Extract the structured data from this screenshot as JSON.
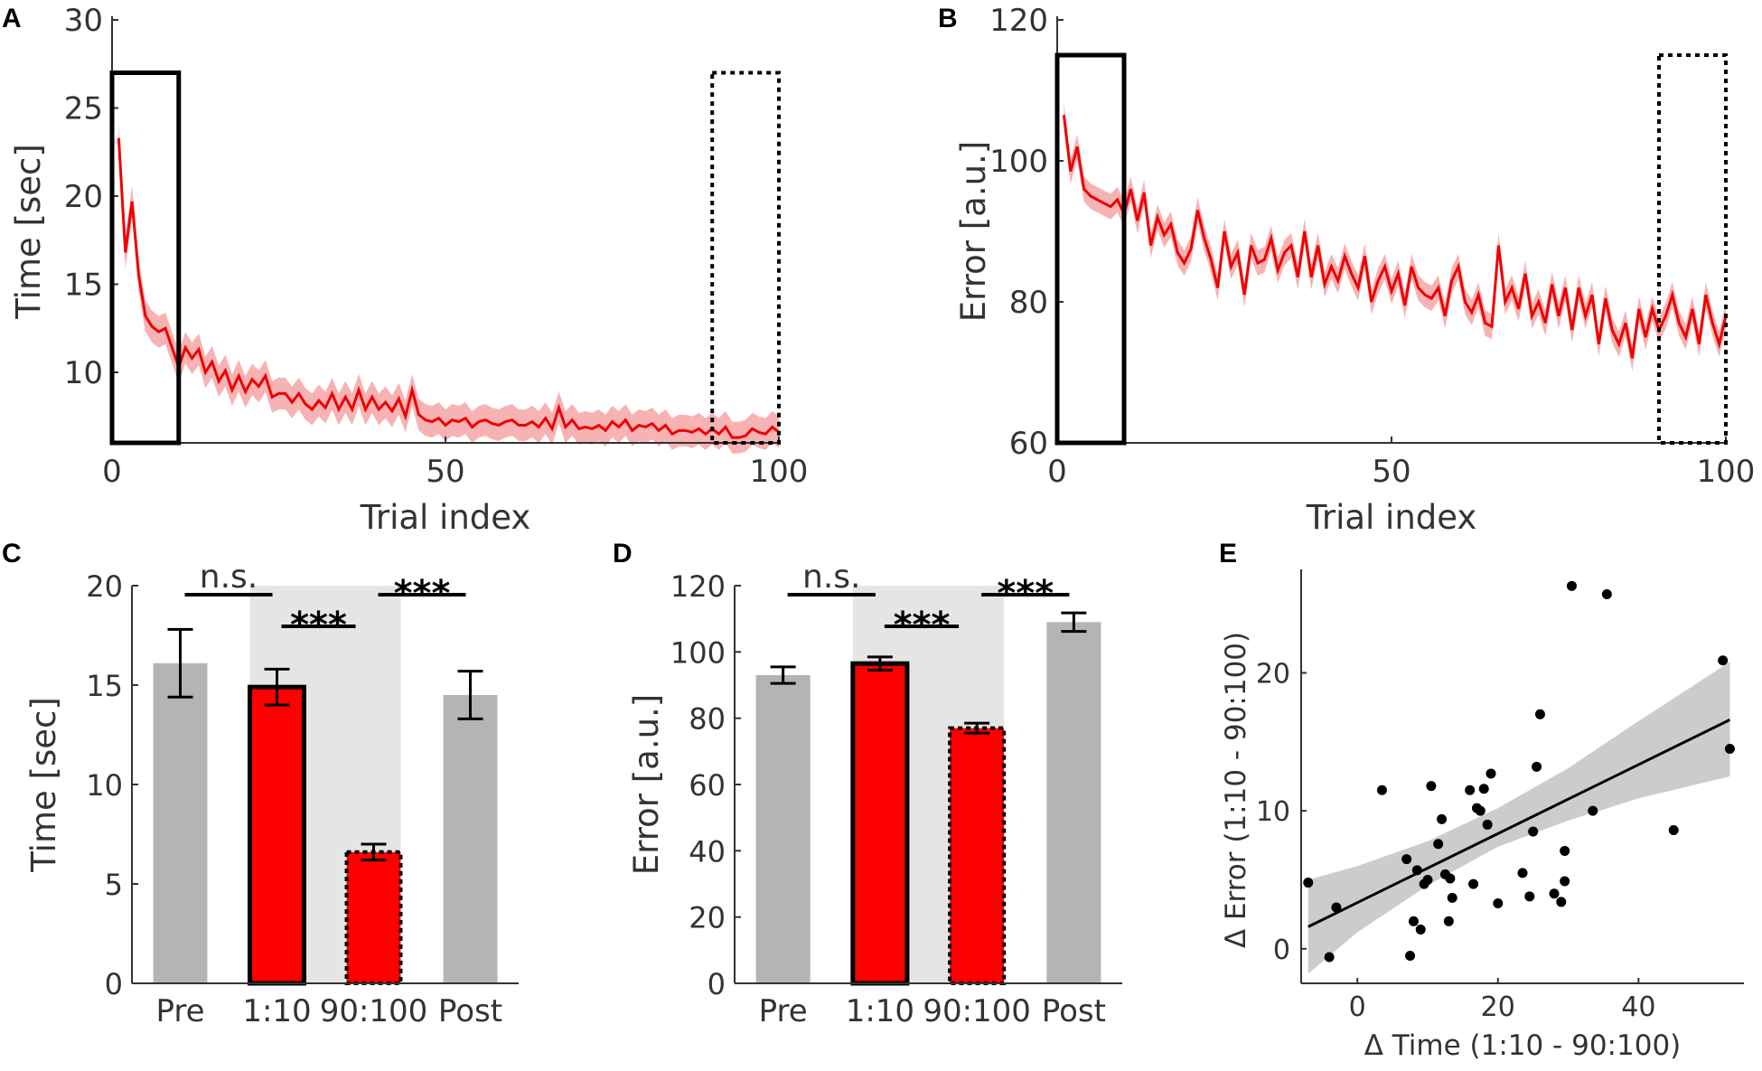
{
  "figure": {
    "panel_labels": [
      "A",
      "B",
      "C",
      "D",
      "E"
    ]
  },
  "chart_data": [
    {
      "panel": "A",
      "type": "line",
      "xlabel": "Trial index",
      "ylabel": "Time [sec]",
      "xlim": [
        0,
        100
      ],
      "ylim": [
        6,
        30
      ],
      "xticks": [
        0,
        50,
        100
      ],
      "yticks": [
        10,
        15,
        20,
        25,
        30
      ],
      "line_color": "#ee0000",
      "band_color": "#f7b3b3",
      "series": [
        {
          "name": "Time",
          "x": [
            1,
            2,
            3,
            4,
            5,
            6,
            7,
            8,
            9,
            10,
            11,
            12,
            13,
            14,
            15,
            16,
            17,
            18,
            19,
            20,
            21,
            22,
            23,
            24,
            25,
            26,
            27,
            28,
            29,
            30,
            31,
            32,
            33,
            34,
            35,
            36,
            37,
            38,
            39,
            40,
            41,
            42,
            43,
            44,
            45,
            46,
            47,
            48,
            49,
            50,
            51,
            52,
            53,
            54,
            55,
            56,
            57,
            58,
            59,
            60,
            61,
            62,
            63,
            64,
            65,
            66,
            67,
            68,
            69,
            70,
            71,
            72,
            73,
            74,
            75,
            76,
            77,
            78,
            79,
            80,
            81,
            82,
            83,
            84,
            85,
            86,
            87,
            88,
            89,
            90,
            91,
            92,
            93,
            94,
            95,
            96,
            97,
            98,
            99,
            100
          ],
          "y": [
            23.3,
            16.8,
            19.7,
            15.5,
            13.2,
            12.6,
            12.3,
            12.5,
            11.4,
            10.3,
            11.4,
            10.8,
            11.3,
            10.0,
            10.6,
            9.5,
            10.1,
            9.0,
            9.8,
            8.9,
            9.6,
            9.2,
            9.8,
            8.6,
            8.8,
            8.8,
            8.3,
            8.8,
            8.2,
            7.9,
            8.4,
            8.0,
            8.8,
            7.9,
            8.6,
            7.9,
            9.0,
            7.9,
            8.6,
            7.9,
            8.3,
            7.8,
            8.5,
            7.5,
            9.0,
            7.6,
            7.3,
            7.2,
            7.4,
            7.0,
            7.3,
            7.2,
            7.4,
            6.9,
            7.2,
            7.3,
            7.1,
            7.0,
            7.2,
            7.3,
            7.0,
            7.0,
            7.2,
            6.9,
            7.4,
            6.8,
            8.0,
            6.9,
            7.3,
            6.8,
            6.9,
            6.8,
            7.0,
            6.7,
            7.2,
            6.9,
            7.3,
            6.7,
            7.0,
            6.9,
            7.1,
            6.7,
            7.0,
            6.5,
            6.7,
            6.7,
            6.6,
            6.8,
            6.5,
            6.8,
            6.5,
            6.9,
            6.3,
            6.3,
            6.4,
            6.8,
            6.6,
            6.5,
            6.9,
            6.6
          ],
          "band": 0.9
        }
      ],
      "boxes": [
        {
          "style": "solid",
          "x": [
            0,
            10
          ],
          "y": [
            6,
            27
          ]
        },
        {
          "style": "dotted",
          "x": [
            90,
            100
          ],
          "y": [
            6,
            27
          ]
        }
      ]
    },
    {
      "panel": "B",
      "type": "line",
      "xlabel": "Trial index",
      "ylabel": "Error [a.u.]",
      "xlim": [
        0,
        100
      ],
      "ylim": [
        60,
        120
      ],
      "xticks": [
        0,
        50,
        100
      ],
      "yticks": [
        60,
        80,
        100,
        120
      ],
      "line_color": "#ee0000",
      "band_color": "#f7b3b3",
      "series": [
        {
          "name": "Error",
          "x": [
            1,
            2,
            3,
            4,
            5,
            6,
            7,
            8,
            9,
            10,
            11,
            12,
            13,
            14,
            15,
            16,
            17,
            18,
            19,
            20,
            21,
            22,
            23,
            24,
            25,
            26,
            27,
            28,
            29,
            30,
            31,
            32,
            33,
            34,
            35,
            36,
            37,
            38,
            39,
            40,
            41,
            42,
            43,
            44,
            45,
            46,
            47,
            48,
            49,
            50,
            51,
            52,
            53,
            54,
            55,
            56,
            57,
            58,
            59,
            60,
            61,
            62,
            63,
            64,
            65,
            66,
            67,
            68,
            69,
            70,
            71,
            72,
            73,
            74,
            75,
            76,
            77,
            78,
            79,
            80,
            81,
            82,
            83,
            84,
            85,
            86,
            87,
            88,
            89,
            90,
            91,
            92,
            93,
            94,
            95,
            96,
            97,
            98,
            99,
            100
          ],
          "y": [
            106.5,
            98.5,
            102,
            96,
            95,
            94.5,
            94,
            93.5,
            94.5,
            92.5,
            96,
            91.5,
            95.5,
            88,
            92,
            89.5,
            91,
            87,
            85.5,
            87.5,
            93,
            89,
            86,
            82,
            90,
            85,
            87,
            81,
            88,
            85.5,
            86,
            89,
            84.5,
            87,
            88,
            83.5,
            90,
            83.5,
            88,
            82.5,
            85,
            83,
            86.5,
            84,
            82,
            86.5,
            80,
            83,
            85,
            81.5,
            84,
            79.5,
            85,
            82,
            81,
            80.5,
            82,
            78,
            83,
            85,
            80,
            78.5,
            81,
            77,
            76.5,
            88,
            80,
            82,
            79,
            84,
            78,
            80,
            77,
            82.5,
            78,
            82,
            76,
            82,
            78,
            81,
            74,
            80.5,
            76,
            74,
            77,
            72,
            79,
            75,
            79,
            76,
            78,
            81,
            77,
            75,
            79,
            74,
            81,
            77,
            74,
            78
          ],
          "band": 1.8
        }
      ],
      "boxes": [
        {
          "style": "solid",
          "x": [
            0,
            10
          ],
          "y": [
            60,
            115
          ]
        },
        {
          "style": "dotted",
          "x": [
            90,
            100
          ],
          "y": [
            60,
            115
          ]
        }
      ]
    },
    {
      "panel": "C",
      "type": "bar",
      "categories": [
        "Pre",
        "1:10",
        "90:100",
        "Post"
      ],
      "values": [
        16.1,
        14.9,
        6.6,
        14.5
      ],
      "errors": [
        1.7,
        0.9,
        0.4,
        1.2
      ],
      "ylabel": "Time [sec]",
      "ylim": [
        0,
        20
      ],
      "yticks": [
        0,
        5,
        10,
        15,
        20
      ],
      "bar_styles": [
        "gray",
        "red-solid",
        "red-dotted",
        "gray"
      ],
      "significance": [
        {
          "from": 0,
          "to": 1,
          "label": "n.s."
        },
        {
          "from": 1,
          "to": 2,
          "label": "***"
        },
        {
          "from": 2,
          "to": 3,
          "label": "***"
        }
      ],
      "colors": {
        "gray": "#b4b4b4",
        "red": "#ff0000",
        "shade": "#e5e5e5"
      }
    },
    {
      "panel": "D",
      "type": "bar",
      "categories": [
        "Pre",
        "1:10",
        "90:100",
        "Post"
      ],
      "values": [
        93,
        96.5,
        77,
        109
      ],
      "errors": [
        2.5,
        2.0,
        1.5,
        2.8
      ],
      "ylabel": "Error [a.u.]",
      "ylim": [
        0,
        120
      ],
      "yticks": [
        0,
        20,
        40,
        60,
        80,
        100,
        120
      ],
      "bar_styles": [
        "gray",
        "red-solid",
        "red-dotted",
        "gray"
      ],
      "significance": [
        {
          "from": 0,
          "to": 1,
          "label": "n.s."
        },
        {
          "from": 1,
          "to": 2,
          "label": "***"
        },
        {
          "from": 2,
          "to": 3,
          "label": "***"
        }
      ],
      "colors": {
        "gray": "#b4b4b4",
        "red": "#ff0000",
        "shade": "#e5e5e5"
      }
    },
    {
      "panel": "E",
      "type": "scatter",
      "xlabel": "Δ  Time (1:10 - 90:100)",
      "ylabel": "Δ  Error (1:10 - 90:100)",
      "xlim": [
        -8,
        55
      ],
      "ylim": [
        -2.5,
        27.5
      ],
      "xticks": [
        0,
        20,
        40
      ],
      "yticks": [
        0,
        10,
        20
      ],
      "points": [
        [
          -7,
          4.8
        ],
        [
          -4,
          -0.6
        ],
        [
          -3,
          3
        ],
        [
          3.5,
          11.5
        ],
        [
          7,
          6.5
        ],
        [
          7.5,
          -0.5
        ],
        [
          8,
          2
        ],
        [
          8.5,
          5.7
        ],
        [
          9,
          1.4
        ],
        [
          9.5,
          4.7
        ],
        [
          10,
          5
        ],
        [
          10.5,
          11.8
        ],
        [
          11.5,
          7.6
        ],
        [
          12,
          9.4
        ],
        [
          12.5,
          5.4
        ],
        [
          13.2,
          5.1
        ],
        [
          13,
          2
        ],
        [
          13.5,
          3.7
        ],
        [
          16.5,
          4.7
        ],
        [
          16,
          11.5
        ],
        [
          17,
          10.2
        ],
        [
          17.5,
          10
        ],
        [
          18,
          11.6
        ],
        [
          18.5,
          9
        ],
        [
          19,
          12.7
        ],
        [
          20,
          3.3
        ],
        [
          23.5,
          5.5
        ],
        [
          24.5,
          3.8
        ],
        [
          25,
          8.5
        ],
        [
          25.5,
          13.2
        ],
        [
          26,
          17
        ],
        [
          28,
          4
        ],
        [
          29.5,
          7.1
        ],
        [
          29.5,
          4.9
        ],
        [
          29,
          3.4
        ],
        [
          30.5,
          26.3
        ],
        [
          33.5,
          10
        ],
        [
          35.5,
          25.7
        ],
        [
          45,
          8.6
        ],
        [
          52,
          20.9
        ],
        [
          53,
          14.5
        ]
      ],
      "regression": {
        "x": [
          -7,
          53
        ],
        "y": [
          1.6,
          16.6
        ]
      },
      "ci": {
        "x": [
          -7,
          0,
          10,
          20,
          30,
          40,
          53
        ],
        "lower": [
          -1.8,
          1.2,
          4.6,
          7.4,
          9.3,
          10.9,
          12.5
        ],
        "upper": [
          5.0,
          6.0,
          7.8,
          10.2,
          13.1,
          16.5,
          20.8
        ]
      },
      "colors": {
        "point": "#000000",
        "line": "#000000",
        "band": "#cccccc"
      }
    }
  ]
}
